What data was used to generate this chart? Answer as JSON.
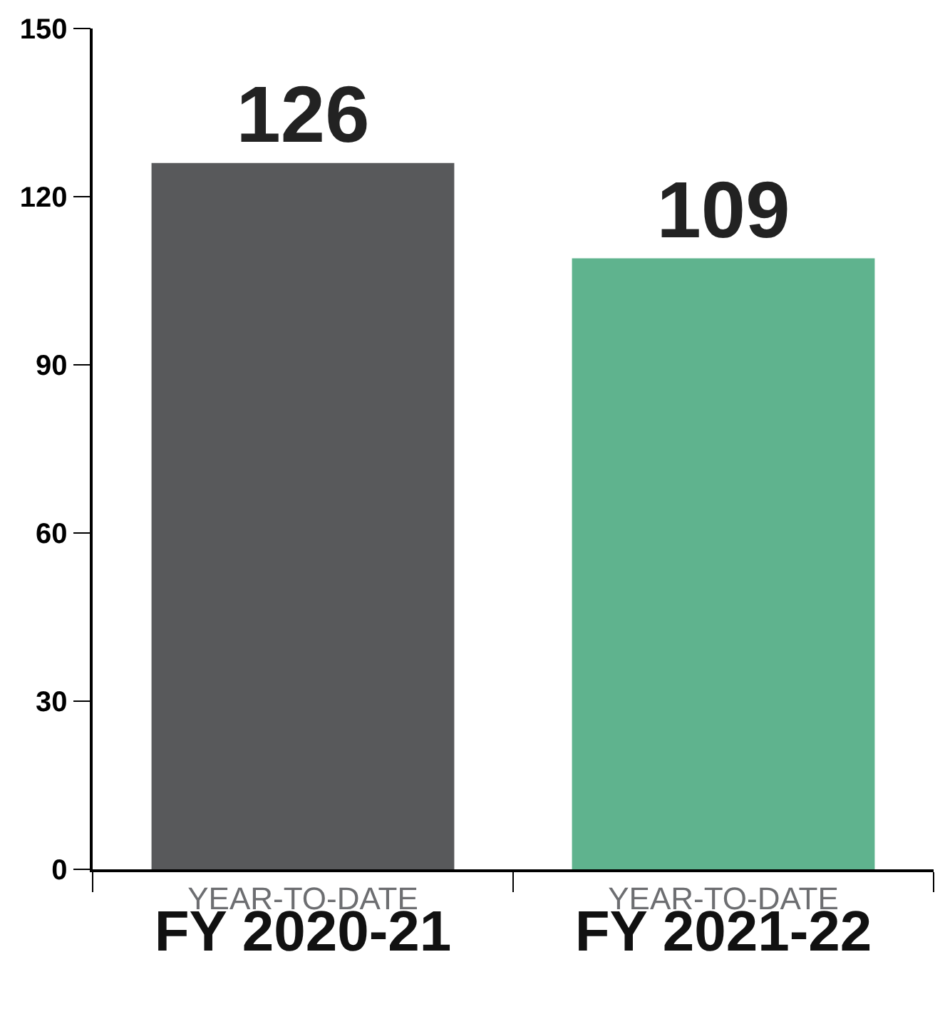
{
  "chart_data": {
    "type": "bar",
    "categories": [
      "YEAR-TO-DATE\nFY 2020-21",
      "YEAR-TO-DATE\nFY 2021-22"
    ],
    "values": [
      126,
      109
    ],
    "colors": [
      "#58595b",
      "#5fb38e"
    ],
    "data_labels": true,
    "ylim": [
      0,
      150
    ],
    "yticks": [
      0,
      30,
      60,
      90,
      120,
      150
    ]
  }
}
